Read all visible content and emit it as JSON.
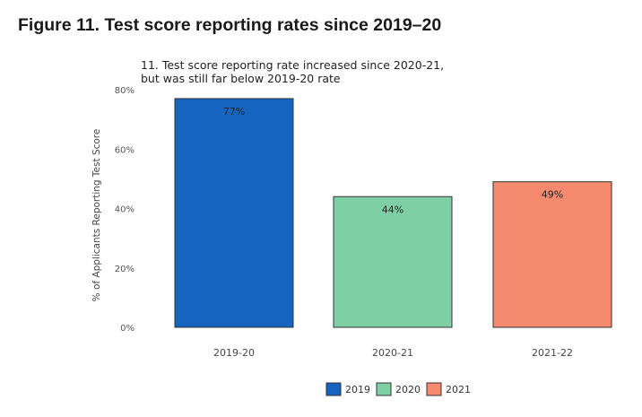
{
  "figure_heading": "Figure 11. Test score reporting rates since 2019–20",
  "chart_data": {
    "type": "bar",
    "title_lines": [
      "11. Test score reporting rate increased since 2020-21,",
      "but was still far below 2019-20 rate"
    ],
    "ylabel": "% of Applicants Reporting Test Score",
    "xlabel": "",
    "categories": [
      "2019-20",
      "2020-21",
      "2021-22"
    ],
    "values": [
      77,
      44,
      49
    ],
    "value_labels": [
      "77%",
      "44%",
      "49%"
    ],
    "ylim": [
      0,
      80
    ],
    "y_ticks": [
      0,
      20,
      40,
      60,
      80
    ],
    "y_tick_labels": [
      "0%",
      "20%",
      "40%",
      "60%",
      "80%"
    ],
    "bar_colors": [
      "#1565c0",
      "#7ed0a4",
      "#f58a6e"
    ],
    "legend": {
      "placement": "bottom",
      "entries": [
        {
          "label": "2019",
          "color": "#1565c0"
        },
        {
          "label": "2020",
          "color": "#7ed0a4"
        },
        {
          "label": "2021",
          "color": "#f58a6e"
        }
      ]
    },
    "grid": false
  }
}
